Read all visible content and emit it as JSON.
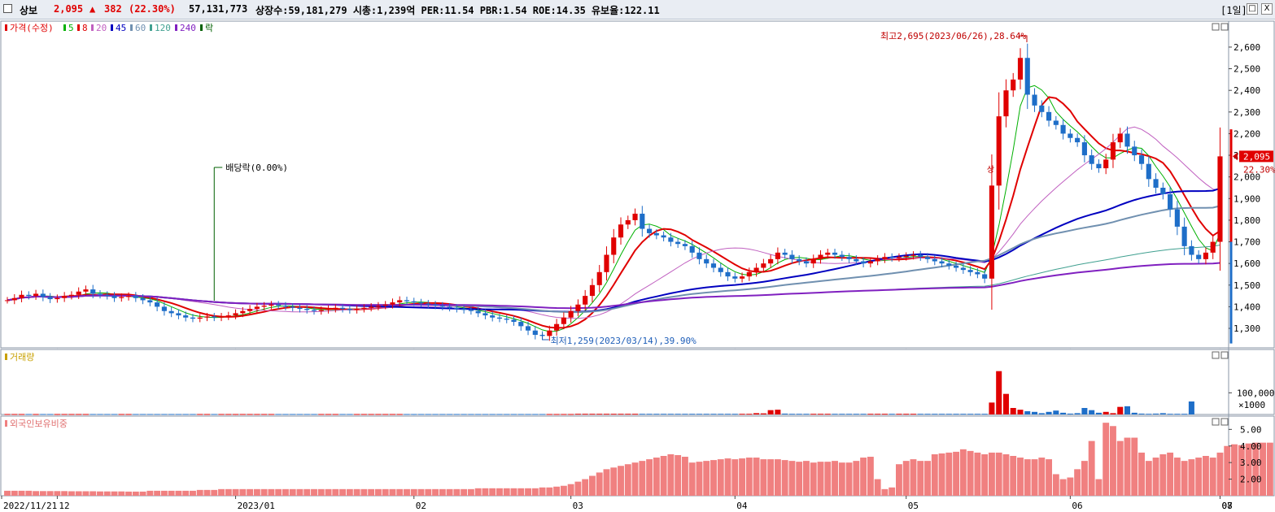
{
  "header": {
    "stock_name": "상보",
    "price": "2,095",
    "change_arrow": "▲",
    "change": "382",
    "change_pct": "(22.30%)",
    "volume": "57,131,773",
    "info": "상장수:59,181,279 시총:1,239억 PER:11.54 PBR:1.54 ROE:14.35 유보율:122.11",
    "period": "[1일]",
    "min_glyph": "_",
    "max_glyph": "□",
    "close_glyph": "X"
  },
  "price_panel": {
    "legend": [
      {
        "label": "가격(수정)",
        "color": "#e00000"
      },
      {
        "label": "5",
        "color": "#00b000"
      },
      {
        "label": "8",
        "color": "#e00000"
      },
      {
        "label": "20",
        "color": "#c060c0"
      },
      {
        "label": "45",
        "color": "#0000c0"
      },
      {
        "label": "60",
        "color": "#7090b0"
      },
      {
        "label": "120",
        "color": "#40a090"
      },
      {
        "label": "240",
        "color": "#8020c0"
      },
      {
        "label": "락",
        "color": "#006000"
      }
    ],
    "annotation_high": "최고2,695(2023/06/26),28.64%",
    "annotation_low": "최저1,259(2023/03/14),39.90%",
    "annotation_dividend": "배당락(0.00%)",
    "annotation_up": "상",
    "current_price_label": "2,095",
    "current_change_label": "22.30%"
  },
  "volume_panel": {
    "title": "거래량",
    "unit_label": "×1000"
  },
  "foreign_panel": {
    "title": "외국인보유비중"
  },
  "colors": {
    "up": "#e00000",
    "down": "#1e6ec8",
    "volume_up": "#e00000",
    "volume_down": "#1e6ec8",
    "foreign": "#f08080"
  },
  "chart_data": {
    "type": "candlestick",
    "x_ticks": [
      "2022/11/21",
      "12",
      "2023/01",
      "02",
      "03",
      "04",
      "05",
      "06",
      "07",
      "08"
    ],
    "price_axis": {
      "ticks": [
        1300,
        1400,
        1500,
        1600,
        1700,
        1800,
        1900,
        2000,
        2100,
        2200,
        2300,
        2400,
        2500,
        2600
      ],
      "tick_labels": [
        "1,300",
        "1,400",
        "1,500",
        "1,600",
        "1,700",
        "1,800",
        "1,900",
        "2,000",
        "2,100",
        "2,200",
        "2,300",
        "2,400",
        "2,500",
        "2,600"
      ],
      "range": [
        1210,
        2720
      ]
    },
    "volume_axis": {
      "ticks": [
        100000
      ],
      "tick_labels": [
        "100,000"
      ],
      "range": [
        0,
        300000
      ]
    },
    "foreign_axis": {
      "ticks": [
        2,
        3,
        4,
        5
      ],
      "tick_labels": [
        "2.00",
        "3.00",
        "4.00",
        "5.00"
      ],
      "range": [
        1.0,
        5.8
      ]
    },
    "close_series": [
      1430,
      1440,
      1455,
      1450,
      1460,
      1445,
      1435,
      1440,
      1450,
      1455,
      1470,
      1480,
      1460,
      1455,
      1450,
      1440,
      1445,
      1450,
      1440,
      1430,
      1420,
      1400,
      1380,
      1370,
      1360,
      1350,
      1345,
      1350,
      1355,
      1350,
      1355,
      1360,
      1370,
      1380,
      1390,
      1400,
      1405,
      1410,
      1405,
      1400,
      1395,
      1390,
      1385,
      1380,
      1385,
      1390,
      1395,
      1390,
      1385,
      1390,
      1395,
      1400,
      1405,
      1410,
      1420,
      1430,
      1425,
      1420,
      1415,
      1410,
      1405,
      1400,
      1395,
      1390,
      1385,
      1380,
      1370,
      1360,
      1350,
      1345,
      1340,
      1330,
      1310,
      1290,
      1270,
      1265,
      1290,
      1320,
      1350,
      1380,
      1410,
      1450,
      1500,
      1560,
      1640,
      1720,
      1780,
      1800,
      1830,
      1760,
      1740,
      1730,
      1720,
      1700,
      1690,
      1680,
      1650,
      1620,
      1600,
      1580,
      1560,
      1540,
      1530,
      1540,
      1560,
      1580,
      1600,
      1620,
      1650,
      1640,
      1620,
      1610,
      1600,
      1620,
      1640,
      1650,
      1640,
      1630,
      1620,
      1610,
      1600,
      1610,
      1620,
      1630,
      1625,
      1630,
      1635,
      1640,
      1630,
      1620,
      1610,
      1600,
      1590,
      1580,
      1570,
      1560,
      1550,
      1530,
      1960,
      2280,
      2400,
      2450,
      2550,
      2380,
      2330,
      2300,
      2260,
      2240,
      2200,
      2180,
      2160,
      2100,
      2060,
      2040,
      2080,
      2160,
      2200,
      2140,
      2100,
      2060,
      1990,
      1950,
      1920,
      1850,
      1770,
      1680,
      1640,
      1620,
      1650,
      1700,
      2095
    ],
    "volume_series_k": [
      2,
      2,
      2,
      2,
      2,
      2,
      2,
      2,
      2,
      2,
      2,
      2,
      2,
      2,
      2,
      2,
      2,
      2,
      2,
      2,
      2,
      2,
      2,
      2,
      2,
      2,
      2,
      2,
      2,
      2,
      2,
      2,
      2,
      2,
      2,
      2,
      2,
      2,
      2,
      2,
      2,
      2,
      2,
      2,
      2,
      2,
      2,
      2,
      2,
      2,
      2,
      2,
      2,
      2,
      2,
      2,
      2,
      2,
      2,
      2,
      2,
      2,
      2,
      2,
      2,
      2,
      2,
      2,
      2,
      2,
      2,
      2,
      2,
      2,
      2,
      2,
      2,
      2,
      2,
      2,
      3,
      3,
      3,
      3,
      3,
      3,
      3,
      3,
      3,
      3,
      3,
      3,
      3,
      3,
      3,
      3,
      3,
      3,
      3,
      3,
      3,
      3,
      3,
      3,
      3,
      6,
      5,
      20,
      22,
      4,
      3,
      3,
      3,
      3,
      3,
      3,
      3,
      3,
      3,
      3,
      3,
      3,
      3,
      3,
      3,
      3,
      3,
      3,
      3,
      3,
      3,
      3,
      3,
      3,
      3,
      3,
      3,
      3,
      55,
      200,
      95,
      30,
      22,
      15,
      12,
      6,
      12,
      18,
      8,
      4,
      6,
      30,
      20,
      8,
      12,
      6,
      35,
      38,
      8,
      4,
      3,
      4,
      6,
      3,
      3,
      3,
      60
    ],
    "foreign_series": [
      1.3,
      1.3,
      1.3,
      1.3,
      1.28,
      1.28,
      1.28,
      1.28,
      1.28,
      1.27,
      1.27,
      1.27,
      1.27,
      1.26,
      1.26,
      1.26,
      1.26,
      1.25,
      1.25,
      1.25,
      1.3,
      1.3,
      1.3,
      1.3,
      1.3,
      1.3,
      1.3,
      1.35,
      1.35,
      1.35,
      1.4,
      1.4,
      1.4,
      1.4,
      1.4,
      1.4,
      1.4,
      1.4,
      1.4,
      1.4,
      1.4,
      1.4,
      1.4,
      1.4,
      1.4,
      1.4,
      1.4,
      1.4,
      1.4,
      1.4,
      1.4,
      1.4,
      1.4,
      1.4,
      1.4,
      1.4,
      1.4,
      1.4,
      1.4,
      1.4,
      1.4,
      1.4,
      1.4,
      1.4,
      1.4,
      1.4,
      1.45,
      1.45,
      1.45,
      1.45,
      1.45,
      1.45,
      1.45,
      1.45,
      1.45,
      1.5,
      1.5,
      1.55,
      1.6,
      1.7,
      1.85,
      2.0,
      2.2,
      2.4,
      2.6,
      2.7,
      2.8,
      2.9,
      3.0,
      3.1,
      3.2,
      3.3,
      3.4,
      3.5,
      3.45,
      3.35,
      3.0,
      3.05,
      3.1,
      3.15,
      3.2,
      3.25,
      3.2,
      3.25,
      3.3,
      3.3,
      3.2,
      3.2,
      3.2,
      3.15,
      3.1,
      3.05,
      3.1,
      3.0,
      3.05,
      3.05,
      3.1,
      3.0,
      3.0,
      3.1,
      3.3,
      3.35,
      2.0,
      1.4,
      1.5,
      2.9,
      3.1,
      3.2,
      3.1,
      3.1,
      3.5,
      3.55,
      3.6,
      3.65,
      3.8,
      3.7,
      3.6,
      3.5,
      3.6,
      3.6,
      3.5,
      3.4,
      3.3,
      3.2,
      3.2,
      3.3,
      3.2,
      2.3,
      2.0,
      2.1,
      2.6,
      3.1,
      4.3,
      2.0,
      5.4,
      5.2,
      4.3,
      4.5,
      4.5,
      3.6,
      3.1,
      3.3,
      3.5,
      3.6,
      3.3,
      3.1,
      3.2,
      3.3,
      3.4,
      3.3,
      3.6,
      4.0,
      4.1,
      4.05,
      4.15,
      4.2,
      4.2,
      4.2
    ]
  }
}
